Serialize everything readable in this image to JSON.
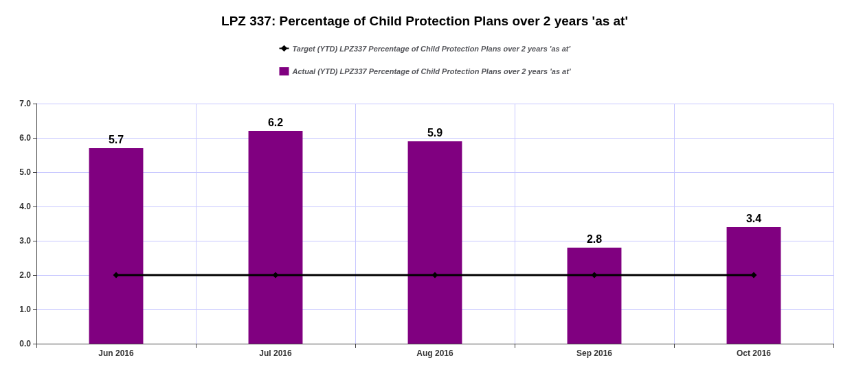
{
  "chart_data": {
    "type": "bar",
    "title": "LPZ 337: Percentage of Child Protection Plans over 2 years 'as at'",
    "categories": [
      "Jun 2016",
      "Jul 2016",
      "Aug 2016",
      "Sep 2016",
      "Oct 2016"
    ],
    "series": [
      {
        "name": "Target (YTD) LPZ337 Percentage of Child Protection Plans over 2 years 'as at'",
        "type": "line",
        "color": "#000000",
        "marker": "diamond",
        "values": [
          2,
          2,
          2,
          2,
          2
        ]
      },
      {
        "name": "Actual (YTD) LPZ337 Percentage of Child Protection Plans over 2 years 'as at'",
        "color": "#800080",
        "values": [
          5.7,
          6.2,
          5.9,
          2.8,
          3.4
        ],
        "value_labels": [
          "5.7",
          "6.2",
          "5.9",
          "2.8",
          "3.4"
        ]
      }
    ],
    "ylim": [
      0,
      7
    ],
    "yticks": [
      {
        "value": 0,
        "label": "0.0"
      },
      {
        "value": 1,
        "label": "1.0"
      },
      {
        "value": 2,
        "label": "2.0"
      },
      {
        "value": 3,
        "label": "3.0"
      },
      {
        "value": 4,
        "label": "4.0"
      },
      {
        "value": 5,
        "label": "5.0"
      },
      {
        "value": 6,
        "label": "6.0"
      },
      {
        "value": 7,
        "label": "7.0"
      }
    ],
    "grid": true,
    "legend": "top"
  }
}
